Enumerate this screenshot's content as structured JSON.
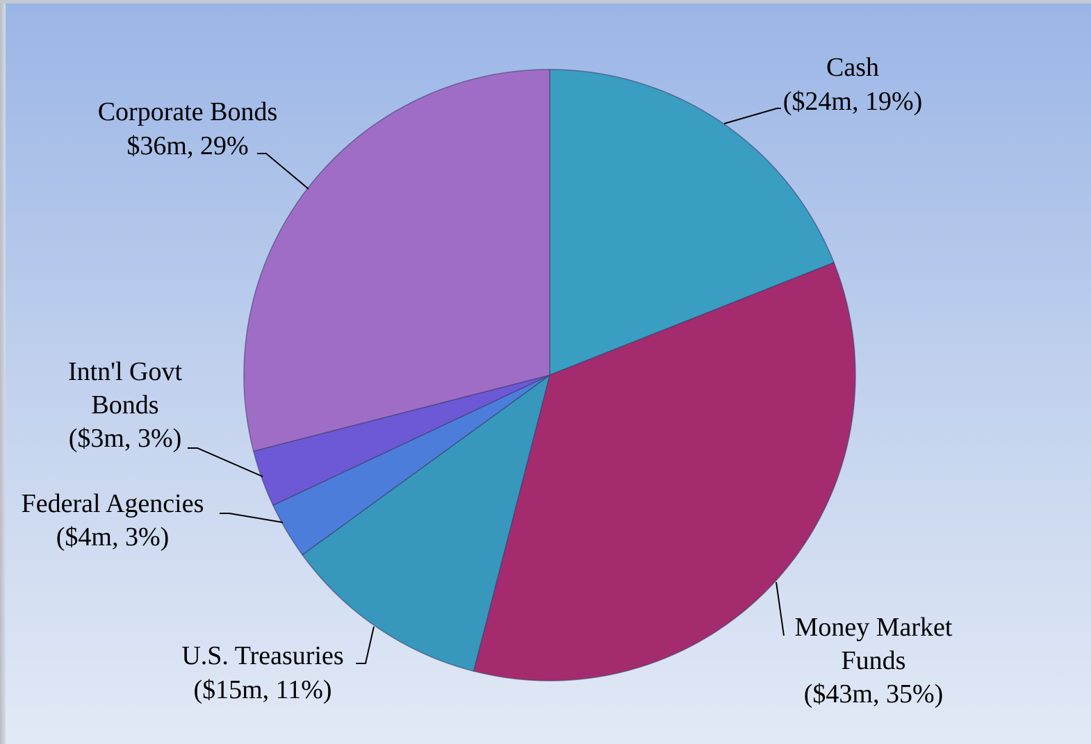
{
  "chart_data": {
    "type": "pie",
    "categories": [
      "Cash",
      "Money Market Funds",
      "U.S. Treasuries",
      "Federal Agencies",
      "Intn'l Govt Bonds",
      "Corporate Bonds"
    ],
    "values": [
      19,
      35,
      11,
      3,
      3,
      29
    ],
    "value_labels": [
      "($24m, 19%)",
      "($43m, 35%)",
      "($15m, 11%)",
      "($4m, 3%)",
      "($3m, 3%)",
      "$36m, 29%"
    ],
    "colors": [
      "#3a9dc2",
      "#a52b6f",
      "#3797bd",
      "#4c7ddb",
      "#6d58d6",
      "#a06dc6"
    ]
  }
}
